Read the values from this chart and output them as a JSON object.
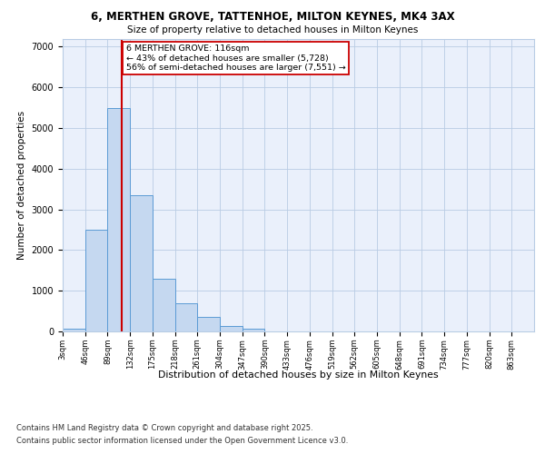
{
  "title_line1": "6, MERTHEN GROVE, TATTENHOE, MILTON KEYNES, MK4 3AX",
  "title_line2": "Size of property relative to detached houses in Milton Keynes",
  "xlabel": "Distribution of detached houses by size in Milton Keynes",
  "ylabel": "Number of detached properties",
  "bins": [
    "3sqm",
    "46sqm",
    "89sqm",
    "132sqm",
    "175sqm",
    "218sqm",
    "261sqm",
    "304sqm",
    "347sqm",
    "390sqm",
    "433sqm",
    "476sqm",
    "519sqm",
    "562sqm",
    "605sqm",
    "648sqm",
    "691sqm",
    "734sqm",
    "777sqm",
    "820sqm",
    "863sqm"
  ],
  "bin_edges": [
    3,
    46,
    89,
    132,
    175,
    218,
    261,
    304,
    347,
    390,
    433,
    476,
    519,
    562,
    605,
    648,
    691,
    734,
    777,
    820,
    863
  ],
  "bar_heights": [
    70,
    2500,
    5500,
    3350,
    1300,
    700,
    350,
    130,
    60,
    0,
    0,
    0,
    0,
    0,
    0,
    0,
    0,
    0,
    0,
    0
  ],
  "bar_color": "#c5d8f0",
  "bar_edge_color": "#5b9bd5",
  "property_line_x": 116,
  "property_line_color": "#cc0000",
  "annotation_text": "6 MERTHEN GROVE: 116sqm\n← 43% of detached houses are smaller (5,728)\n56% of semi-detached houses are larger (7,551) →",
  "annotation_box_color": "#ffffff",
  "annotation_box_edge_color": "#cc0000",
  "ylim": [
    0,
    7200
  ],
  "yticks": [
    0,
    1000,
    2000,
    3000,
    4000,
    5000,
    6000,
    7000
  ],
  "footer_line1": "Contains HM Land Registry data © Crown copyright and database right 2025.",
  "footer_line2": "Contains public sector information licensed under the Open Government Licence v3.0.",
  "plot_bg_color": "#eaf0fb"
}
